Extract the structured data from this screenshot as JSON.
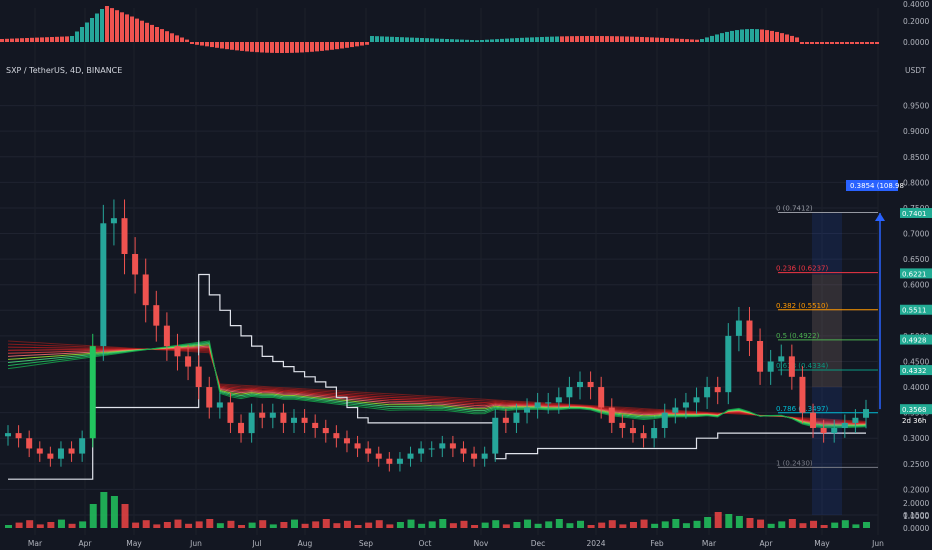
{
  "header": {
    "title": "SXP / TetherUS, 4D, BINANCE",
    "currency": "USDT"
  },
  "osc_axis": {
    "ticks": [
      "0.4000",
      "0.2000",
      "0.0000"
    ]
  },
  "vol_axis": {
    "ticks": [
      "2.0000",
      "1.0000",
      "0.0000"
    ]
  },
  "chart_data": {
    "type": "candlestick",
    "title": "SXP / TetherUS, 4D, BINANCE",
    "ylabel": "USDT",
    "ylim": [
      0.15,
      1.0
    ],
    "y_ticks": [
      0.95,
      0.9,
      0.85,
      0.8,
      0.75,
      0.7,
      0.65,
      0.6,
      0.55,
      0.5,
      0.45,
      0.4,
      0.35,
      0.3,
      0.25,
      0.2,
      0.15
    ],
    "y_tick_labels": [
      "0.9500",
      "0.9000",
      "0.8500",
      "0.8000",
      "0.7500",
      "0.7000",
      "0.6500",
      "0.6000",
      "0.5500",
      "0.5000",
      "0.4500",
      "0.4000",
      "0.3500",
      "0.3000",
      "0.2500",
      "0.2000",
      "0.1500"
    ],
    "x_ticks": [
      "Mar",
      "Apr",
      "May",
      "Jun",
      "Jul",
      "Aug",
      "Sep",
      "Oct",
      "Nov",
      "Dec",
      "2024",
      "Feb",
      "Mar",
      "Apr",
      "May",
      "Jun"
    ],
    "closes": [
      0.31,
      0.3,
      0.28,
      0.27,
      0.26,
      0.28,
      0.27,
      0.3,
      0.48,
      0.72,
      0.73,
      0.66,
      0.62,
      0.56,
      0.52,
      0.48,
      0.46,
      0.44,
      0.4,
      0.36,
      0.37,
      0.33,
      0.31,
      0.35,
      0.34,
      0.35,
      0.33,
      0.34,
      0.33,
      0.32,
      0.31,
      0.3,
      0.29,
      0.28,
      0.27,
      0.26,
      0.25,
      0.26,
      0.27,
      0.28,
      0.28,
      0.29,
      0.28,
      0.27,
      0.26,
      0.27,
      0.34,
      0.33,
      0.35,
      0.36,
      0.37,
      0.37,
      0.38,
      0.4,
      0.41,
      0.4,
      0.36,
      0.33,
      0.32,
      0.31,
      0.3,
      0.32,
      0.35,
      0.36,
      0.37,
      0.38,
      0.4,
      0.39,
      0.5,
      0.53,
      0.49,
      0.43,
      0.45,
      0.46,
      0.42,
      0.35,
      0.32,
      0.31,
      0.32,
      0.33,
      0.34,
      0.357
    ],
    "last_price": "0.3568",
    "countdown": "2d 36h",
    "fib_levels": [
      {
        "ratio": "0",
        "price": "0.7412",
        "color": "#9598a1",
        "value": 0.7412
      },
      {
        "ratio": "0.236",
        "price": "0.6237",
        "color": "#f23645",
        "value": 0.6237
      },
      {
        "ratio": "0.382",
        "price": "0.5510",
        "color": "#ff9800",
        "value": 0.551
      },
      {
        "ratio": "0.5",
        "price": "0.4922",
        "color": "#4caf50",
        "value": 0.4922
      },
      {
        "ratio": "0.618",
        "price": "0.4334",
        "color": "#089981",
        "value": 0.4334
      },
      {
        "ratio": "0.786",
        "price": "0.3497",
        "color": "#00bcd4",
        "value": 0.3497
      },
      {
        "ratio": "1",
        "price": "0.2430",
        "color": "#787b86",
        "value": 0.243
      }
    ],
    "right_labels": [
      {
        "text": "0.7401",
        "value": 0.7401,
        "color": "#22ab94"
      },
      {
        "text": "0.6221",
        "value": 0.6221,
        "color": "#22ab94"
      },
      {
        "text": "0.5511",
        "value": 0.5511,
        "color": "#22ab94"
      },
      {
        "text": "0.4928",
        "value": 0.4928,
        "color": "#22ab94"
      },
      {
        "text": "0.4332",
        "value": 0.4332,
        "color": "#22ab94"
      },
      {
        "text": "0.3568",
        "value": 0.3568,
        "color": "#22ab94"
      }
    ],
    "projection_label": "0.3854 (108.98",
    "projection_value": 0.7401
  }
}
